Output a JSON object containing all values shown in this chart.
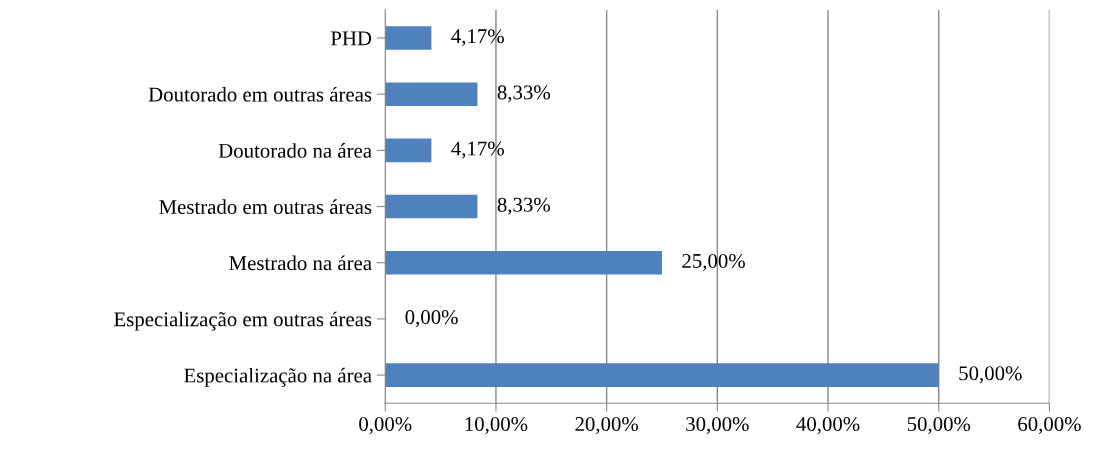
{
  "chart_data": {
    "type": "bar",
    "orientation": "horizontal",
    "categories": [
      "PHD",
      "Doutorado em outras áreas",
      "Doutorado na área",
      "Mestrado em outras áreas",
      "Mestrado na área",
      "Especialização em outras áreas",
      "Especialização na área"
    ],
    "values": [
      4.17,
      8.33,
      4.17,
      8.33,
      25.0,
      0.0,
      50.0
    ],
    "value_labels": [
      "4,17%",
      "8,33%",
      "4,17%",
      "8,33%",
      "25,00%",
      "0,00%",
      "50,00%"
    ],
    "color": "#4f81bd",
    "xlim": [
      0,
      60
    ],
    "xticks": [
      {
        "value": 0,
        "label": "0,00%"
      },
      {
        "value": 10,
        "label": "10,00%"
      },
      {
        "value": 20,
        "label": "20,00%"
      },
      {
        "value": 30,
        "label": "30,00%"
      },
      {
        "value": 40,
        "label": "40,00%"
      },
      {
        "value": 50,
        "label": "50,00%"
      },
      {
        "value": 60,
        "label": "60,00%"
      }
    ],
    "grid": "x",
    "legend": false
  }
}
